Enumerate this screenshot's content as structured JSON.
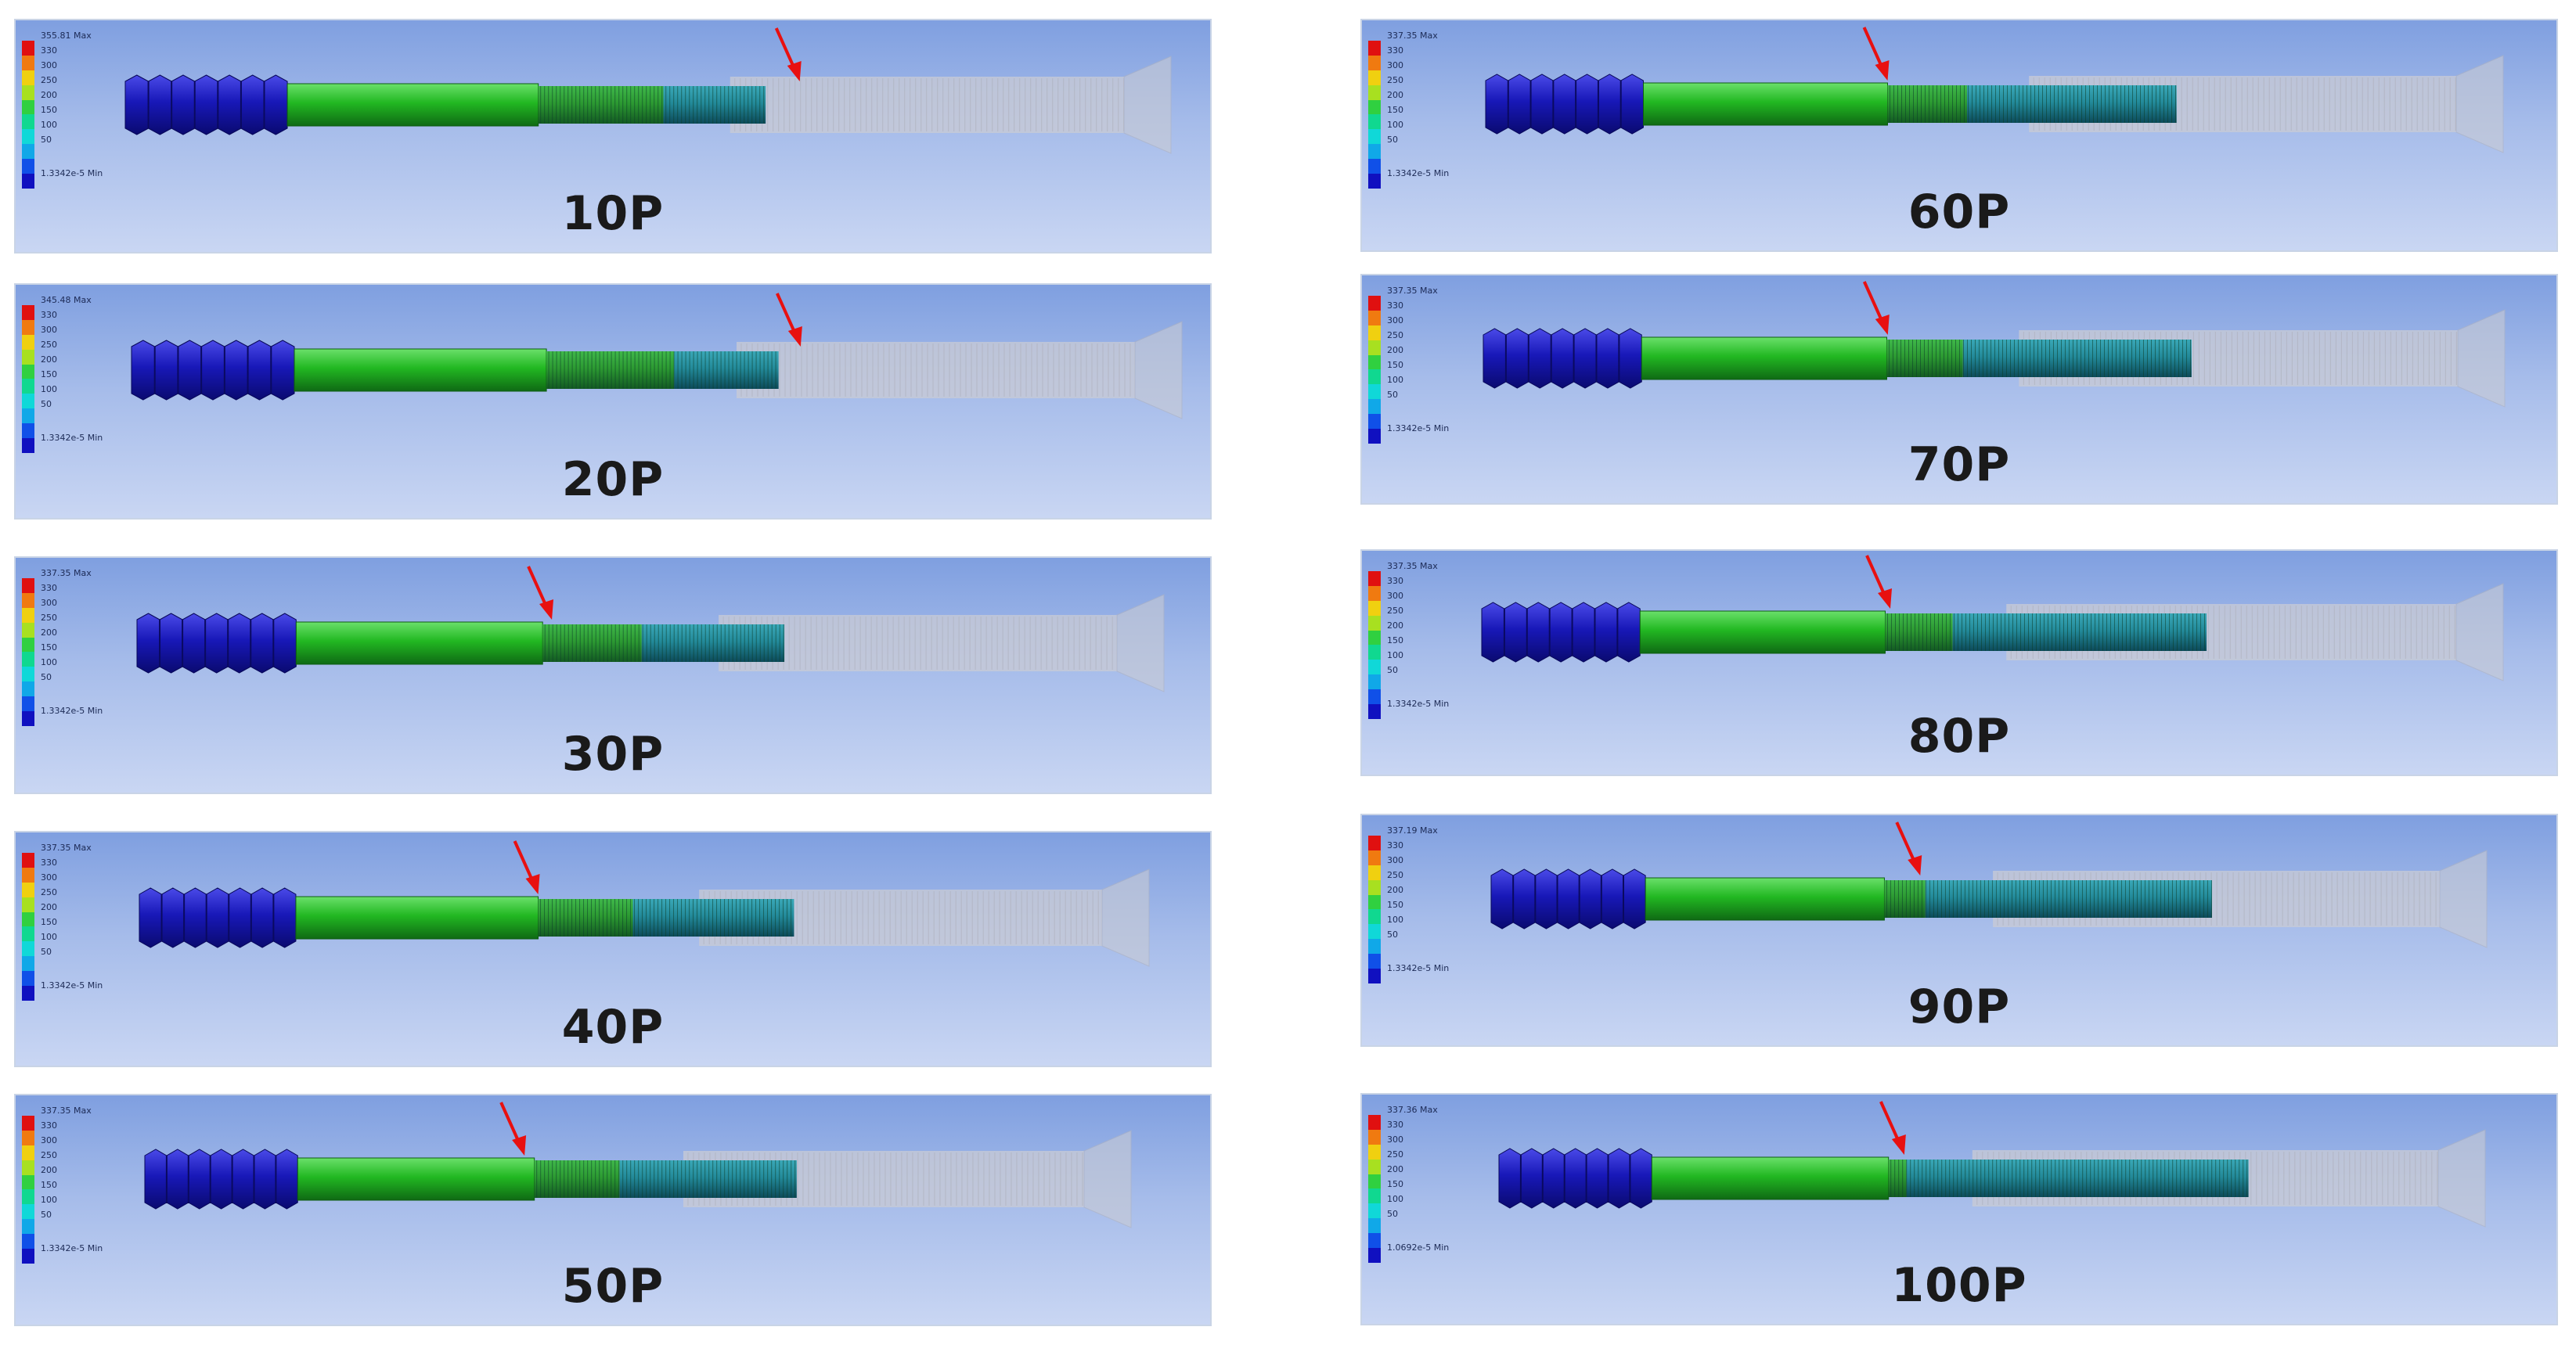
{
  "legend_colors": [
    "#e01010",
    "#f07a10",
    "#f0d010",
    "#a8e020",
    "#30d040",
    "#10d890",
    "#10d8d8",
    "#10a8e8",
    "#1050e8",
    "#1010c0"
  ],
  "legend_ticks": [
    "330",
    "300",
    "250",
    "200",
    "150",
    "100",
    "50"
  ],
  "colors": {
    "anchor_blue": "#1818b8",
    "shank_green": "#22b822",
    "thread_green": "#2c9a32",
    "thread_teal": "#238a9a",
    "sleeve_gray": "#c9cbd4",
    "arrow_red": "#e81010"
  },
  "panels": [
    {
      "label": "10P",
      "legend_max": "355.81 Max",
      "legend_min": "1.3342e-5 Min",
      "stress_fraction": 0.0,
      "sleeve_fraction": 0.18
    },
    {
      "label": "20P",
      "legend_max": "345.48 Max",
      "legend_min": "1.3342e-5 Min",
      "stress_fraction": 0.0,
      "sleeve_fraction": 0.2
    },
    {
      "label": "30P",
      "legend_max": "337.35 Max",
      "legend_min": "1.3342e-5 Min",
      "stress_fraction": 0.28,
      "sleeve_fraction": 0.28
    },
    {
      "label": "40P",
      "legend_max": "337.35 Max",
      "legend_min": "1.3342e-5 Min",
      "stress_fraction": 0.36,
      "sleeve_fraction": 0.38
    },
    {
      "label": "50P",
      "legend_max": "337.35 Max",
      "legend_min": "1.3342e-5 Min",
      "stress_fraction": 0.45,
      "sleeve_fraction": 0.45
    },
    {
      "label": "60P",
      "legend_max": "337.35 Max",
      "legend_min": "1.3342e-5 Min",
      "stress_fraction": 0.55,
      "sleeve_fraction": 0.55
    },
    {
      "label": "70P",
      "legend_max": "337.35 Max",
      "legend_min": "1.3342e-5 Min",
      "stress_fraction": 0.6,
      "sleeve_fraction": 0.63
    },
    {
      "label": "80P",
      "legend_max": "337.35 Max",
      "legend_min": "1.3342e-5 Min",
      "stress_fraction": 0.68,
      "sleeve_fraction": 0.72
    },
    {
      "label": "90P",
      "legend_max": "337.19 Max",
      "legend_min": "1.3342e-5 Min",
      "stress_fraction": 0.85,
      "sleeve_fraction": 0.8
    },
    {
      "label": "100P",
      "legend_max": "337.36 Max",
      "legend_min": "1.0692e-5 Min",
      "stress_fraction": 1.0,
      "sleeve_fraction": 1.0
    }
  ]
}
